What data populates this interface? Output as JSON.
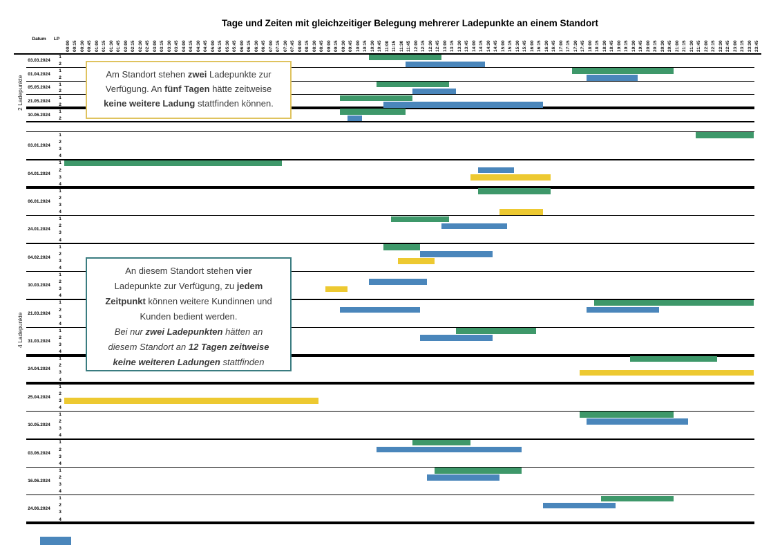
{
  "title": "Tage und Zeiten mit gleichzeitiger Belegung mehrerer Ladepunkte an einem Standort",
  "annotations": [
    {
      "id": "box-2lp",
      "border_color": "#dfc35f",
      "lines": [
        [
          {
            "t": "Am Standort stehen "
          },
          {
            "t": "zwei",
            "b": true
          },
          {
            "t": " Ladepunkte zur"
          }
        ],
        [
          {
            "t": "Verfügung. An "
          },
          {
            "t": "fünf Tagen",
            "b": true
          },
          {
            "t": " hätte zeitweise"
          }
        ],
        [
          {
            "t": "keine weitere Ladung",
            "b": true
          },
          {
            "t": " stattfinden können."
          }
        ]
      ]
    },
    {
      "id": "box-4lp",
      "border_color": "#3a7c80",
      "lines": [
        [
          {
            "t": "An diesem Standort stehen "
          },
          {
            "t": "vier",
            "b": true
          }
        ],
        [
          {
            "t": "Ladepunkte zur Verfügung, zu "
          },
          {
            "t": "jedem",
            "b": true
          }
        ],
        [
          {
            "t": "Zeitpunkt",
            "b": true
          },
          {
            "t": " können weitere Kundinnen und"
          }
        ],
        [
          {
            "t": "Kunden bedient werden."
          }
        ],
        [
          {
            "t": "Bei nur ",
            "i": true
          },
          {
            "t": "zwei Ladepunkten",
            "b": true,
            "i": true
          },
          {
            "t": " hätten an",
            "i": true
          }
        ],
        [
          {
            "t": "diesem Standort an ",
            "i": true
          },
          {
            "t": "12 Tagen zeitweise",
            "b": true,
            "i": true
          }
        ],
        [
          {
            "t": "keine weiteren Ladungen",
            "b": true,
            "i": true
          },
          {
            "t": " stattfinden",
            "i": true
          }
        ]
      ]
    }
  ],
  "artifacts": {
    "bottom_left_color": "#4a86bb"
  },
  "chart_data": {
    "type": "gantt",
    "title": "Tage und Zeiten mit gleichzeitiger Belegung mehrerer Ladepunkte an einem Standort",
    "column_headers": {
      "date": "Datum",
      "lp": "LP"
    },
    "bar_colors": {
      "green": "#3E986A",
      "blue": "#4A86BB",
      "yellow": "#EDC931"
    },
    "x_axis": {
      "unit": "time-of-day",
      "range": [
        "00:00",
        "24:00"
      ],
      "tick_interval_minutes": 15,
      "tick_labels": [
        "00:00",
        "00:15",
        "00:30",
        "00:45",
        "01:00",
        "01:15",
        "01:30",
        "01:45",
        "02:00",
        "02:15",
        "02:30",
        "02:45",
        "03:00",
        "03:15",
        "03:30",
        "03:45",
        "04:00",
        "04:15",
        "04:30",
        "04:45",
        "05:00",
        "05:15",
        "05:30",
        "05:45",
        "06:00",
        "06:15",
        "06:30",
        "06:45",
        "07:00",
        "07:15",
        "07:30",
        "07:45",
        "08:00",
        "08:15",
        "08:30",
        "08:45",
        "09:00",
        "09:15",
        "09:30",
        "09:45",
        "10:00",
        "10:15",
        "10:30",
        "10:45",
        "11:00",
        "11:15",
        "11:30",
        "11:45",
        "12:00",
        "12:15",
        "12:30",
        "12:45",
        "13:00",
        "13:15",
        "13:30",
        "13:45",
        "14:00",
        "14:15",
        "14:30",
        "14:45",
        "15:00",
        "15:15",
        "15:30",
        "15:45",
        "16:00",
        "16:15",
        "16:30",
        "16:45",
        "17:00",
        "17:15",
        "17:30",
        "17:45",
        "18:00",
        "18:15",
        "18:30",
        "18:45",
        "19:00",
        "19:15",
        "19:30",
        "19:45",
        "20:00",
        "20:15",
        "20:30",
        "20:45",
        "21:00",
        "21:15",
        "21:30",
        "21:45",
        "22:00",
        "22:15",
        "22:30",
        "22:45",
        "23:00",
        "23:15",
        "23:30",
        "23:45"
      ]
    },
    "sections": [
      {
        "label": "2 Ladepunkte",
        "lp_rows": [
          1,
          2
        ],
        "days": [
          {
            "date": "03.03.2024",
            "thick_line_after": false,
            "bars": [
              {
                "lp": 1,
                "start": "10:30",
                "end": "13:00",
                "color": "green"
              },
              {
                "lp": 2,
                "start": "11:45",
                "end": "14:30",
                "color": "blue"
              }
            ]
          },
          {
            "date": "01.04.2024",
            "thick_line_after": false,
            "bars": [
              {
                "lp": 1,
                "start": "17:30",
                "end": "21:00",
                "color": "green"
              },
              {
                "lp": 2,
                "start": "18:00",
                "end": "19:45",
                "color": "blue"
              }
            ]
          },
          {
            "date": "05.05.2024",
            "thick_line_after": false,
            "bars": [
              {
                "lp": 1,
                "start": "10:45",
                "end": "13:15",
                "color": "green"
              },
              {
                "lp": 2,
                "start": "12:00",
                "end": "13:30",
                "color": "blue"
              }
            ]
          },
          {
            "date": "21.05.2024",
            "thick_line_after": true,
            "bars": [
              {
                "lp": 1,
                "start": "09:30",
                "end": "12:00",
                "color": "green"
              },
              {
                "lp": 2,
                "start": "11:00",
                "end": "16:30",
                "color": "blue"
              }
            ]
          },
          {
            "date": "10.06.2024",
            "thick_line_after": false,
            "bars": [
              {
                "lp": 1,
                "start": "09:30",
                "end": "11:45",
                "color": "green"
              },
              {
                "lp": 2,
                "start": "09:45",
                "end": "10:15",
                "color": "blue"
              }
            ]
          }
        ]
      },
      {
        "label": "4 Ladepunkte",
        "lp_rows": [
          1,
          2,
          3,
          4
        ],
        "days": [
          {
            "date": "03.01.2024",
            "thick_line_after": false,
            "bars": [
              {
                "lp": 1,
                "start": "21:45",
                "end": "23:45",
                "color": "green"
              }
            ]
          },
          {
            "date": "04.01.2024",
            "thick_line_after": true,
            "bars": [
              {
                "lp": 1,
                "start": "00:00",
                "end": "07:30",
                "color": "green"
              },
              {
                "lp": 2,
                "start": "14:15",
                "end": "15:30",
                "color": "blue"
              },
              {
                "lp": 3,
                "start": "14:00",
                "end": "16:45",
                "color": "yellow"
              }
            ]
          },
          {
            "date": "06.01.2024",
            "thick_line_after": false,
            "bars": [
              {
                "lp": 1,
                "start": "14:15",
                "end": "16:45",
                "color": "green"
              },
              {
                "lp": 4,
                "start": "15:00",
                "end": "16:30",
                "color": "yellow"
              }
            ]
          },
          {
            "date": "24.01.2024",
            "thick_line_after": false,
            "bars": [
              {
                "lp": 1,
                "start": "11:15",
                "end": "13:15",
                "color": "green"
              },
              {
                "lp": 2,
                "start": "13:00",
                "end": "15:15",
                "color": "blue"
              }
            ]
          },
          {
            "date": "04.02.2024",
            "thick_line_after": false,
            "bars": [
              {
                "lp": 1,
                "start": "11:00",
                "end": "12:15",
                "color": "green"
              },
              {
                "lp": 2,
                "start": "12:15",
                "end": "14:45",
                "color": "blue"
              },
              {
                "lp": 3,
                "start": "11:30",
                "end": "12:45",
                "color": "yellow"
              }
            ]
          },
          {
            "date": "10.03.2024",
            "thick_line_after": false,
            "bars": [
              {
                "lp": 2,
                "start": "10:30",
                "end": "12:30",
                "color": "blue"
              },
              {
                "lp": 3,
                "start": "09:00",
                "end": "09:45",
                "color": "yellow"
              }
            ]
          },
          {
            "date": "21.03.2024",
            "thick_line_after": false,
            "bars": [
              {
                "lp": 1,
                "start": "18:15",
                "end": "23:45",
                "color": "green"
              },
              {
                "lp": 2,
                "start": "09:30",
                "end": "12:15",
                "color": "blue"
              },
              {
                "lp": 2,
                "start": "18:00",
                "end": "20:30",
                "color": "blue"
              }
            ]
          },
          {
            "date": "31.03.2024",
            "thick_line_after": true,
            "bars": [
              {
                "lp": 1,
                "start": "13:30",
                "end": "16:15",
                "color": "green"
              },
              {
                "lp": 2,
                "start": "12:15",
                "end": "14:45",
                "color": "blue"
              }
            ]
          },
          {
            "date": "24.04.2024",
            "thick_line_after": true,
            "bars": [
              {
                "lp": 1,
                "start": "19:30",
                "end": "22:30",
                "color": "green"
              },
              {
                "lp": 3,
                "start": "17:45",
                "end": "23:45",
                "color": "yellow"
              }
            ]
          },
          {
            "date": "25.04.2024",
            "thick_line_after": false,
            "bars": [
              {
                "lp": 3,
                "start": "00:00",
                "end": "08:45",
                "color": "yellow"
              }
            ]
          },
          {
            "date": "10.05.2024",
            "thick_line_after": false,
            "bars": [
              {
                "lp": 1,
                "start": "17:45",
                "end": "21:00",
                "color": "green"
              },
              {
                "lp": 2,
                "start": "18:00",
                "end": "21:30",
                "color": "blue"
              }
            ]
          },
          {
            "date": "03.06.2024",
            "thick_line_after": false,
            "bars": [
              {
                "lp": 1,
                "start": "12:00",
                "end": "14:00",
                "color": "green"
              },
              {
                "lp": 2,
                "start": "10:45",
                "end": "15:45",
                "color": "blue"
              }
            ]
          },
          {
            "date": "16.06.2024",
            "thick_line_after": false,
            "bars": [
              {
                "lp": 1,
                "start": "12:45",
                "end": "15:45",
                "color": "green"
              },
              {
                "lp": 2,
                "start": "12:30",
                "end": "15:00",
                "color": "blue"
              }
            ]
          },
          {
            "date": "24.06.2024",
            "thick_line_after": true,
            "bars": [
              {
                "lp": 1,
                "start": "18:30",
                "end": "21:00",
                "color": "green"
              },
              {
                "lp": 2,
                "start": "16:30",
                "end": "19:00",
                "color": "blue"
              }
            ]
          }
        ]
      }
    ]
  }
}
